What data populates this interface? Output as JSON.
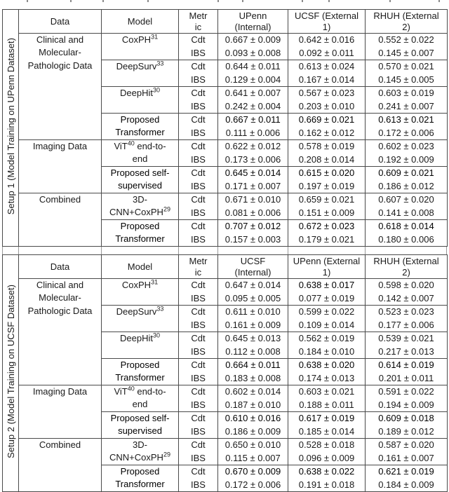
{
  "metric_labels": [
    "Cdt",
    "IBS"
  ],
  "tables": [
    {
      "setup_label": "Setup 1 (Model Training on UPenn Dataset)",
      "headers": [
        "Data",
        "Model",
        "Metric",
        "UPenn (Internal)",
        "UCSF (External 1)",
        "RHUH (External 2)"
      ],
      "groups": [
        {
          "data": "Clinical and Molecular-Pathologic Data",
          "models": [
            {
              "pre": "CoxPH",
              "sup": "31",
              "post": "",
              "bold": false,
              "cdt": [
                "0.667 ± 0.009",
                "0.642 ± 0.016",
                "0.552 ± 0.022"
              ],
              "cdt_bold": [
                false,
                false,
                false
              ],
              "ibs": [
                "0.093 ± 0.008",
                "0.092 ± 0.011",
                "0.145 ± 0.007"
              ]
            },
            {
              "pre": "DeepSurv",
              "sup": "33",
              "post": "",
              "bold": false,
              "cdt": [
                "0.644 ± 0.011",
                "0.613 ± 0.024",
                "0.570 ± 0.021"
              ],
              "cdt_bold": [
                false,
                false,
                false
              ],
              "ibs": [
                "0.129 ± 0.004",
                "0.167 ± 0.014",
                "0.145 ± 0.005"
              ]
            },
            {
              "pre": "DeepHit",
              "sup": "30",
              "post": "",
              "bold": false,
              "cdt": [
                "0.641 ± 0.007",
                "0.567 ± 0.023",
                "0.603 ± 0.019"
              ],
              "cdt_bold": [
                false,
                false,
                false
              ],
              "ibs": [
                "0.242 ± 0.004",
                "0.203 ± 0.010",
                "0.241 ± 0.007"
              ]
            },
            {
              "pre": "Proposed Transformer",
              "sup": "",
              "post": "",
              "bold": true,
              "cdt": [
                "0.667 ± 0.011",
                "0.669 ± 0.021",
                "0.613 ± 0.021"
              ],
              "cdt_bold": [
                true,
                true,
                true
              ],
              "ibs": [
                "0.111 ± 0.006",
                "0.162 ± 0.012",
                "0.172 ± 0.006"
              ]
            }
          ]
        },
        {
          "data": "Imaging Data",
          "models": [
            {
              "pre": "ViT",
              "sup": "40",
              "post": " end-to-end",
              "bold": false,
              "cdt": [
                "0.622 ± 0.012",
                "0.578 ± 0.019",
                "0.602 ± 0.023"
              ],
              "cdt_bold": [
                false,
                false,
                false
              ],
              "ibs": [
                "0.173 ± 0.006",
                "0.208 ± 0.014",
                "0.192 ± 0.009"
              ]
            },
            {
              "pre": "Proposed self-supervised",
              "sup": "",
              "post": "",
              "bold": true,
              "cdt": [
                "0.645 ± 0.014",
                "0.615 ± 0.020",
                "0.609 ± 0.021"
              ],
              "cdt_bold": [
                true,
                true,
                true
              ],
              "ibs": [
                "0.171 ± 0.007",
                "0.197 ± 0.019",
                "0.186 ± 0.012"
              ]
            }
          ]
        },
        {
          "data": "Combined",
          "models": [
            {
              "pre": "3D-CNN+CoxPH",
              "sup": "29",
              "post": "",
              "bold": false,
              "cdt": [
                "0.671 ± 0.010",
                "0.659 ± 0.021",
                "0.607 ± 0.020"
              ],
              "cdt_bold": [
                false,
                false,
                false
              ],
              "ibs": [
                "0.081 ± 0.006",
                "0.151 ± 0.009",
                "0.141 ± 0.008"
              ]
            },
            {
              "pre": "Proposed Transformer",
              "sup": "",
              "post": "",
              "bold": true,
              "cdt": [
                "0.707 ± 0.012",
                "0.672 ± 0.023",
                "0.618 ± 0.014"
              ],
              "cdt_bold": [
                true,
                true,
                true
              ],
              "ibs": [
                "0.157 ± 0.003",
                "0.179 ± 0.021",
                "0.180 ± 0.006"
              ]
            }
          ]
        }
      ]
    },
    {
      "setup_label": "Setup 2 (Model Training on UCSF Dataset)",
      "headers": [
        "Data",
        "Model",
        "Metric",
        "UCSF (Internal)",
        "UPenn (External 1)",
        "RHUH (External 2)"
      ],
      "groups": [
        {
          "data": "Clinical and Molecular-Pathologic Data",
          "models": [
            {
              "pre": "CoxPH",
              "sup": "31",
              "post": "",
              "bold": false,
              "cdt": [
                "0.647 ± 0.014",
                "0.638 ± 0.017",
                "0.598 ± 0.020"
              ],
              "cdt_bold": [
                false,
                true,
                false
              ],
              "ibs": [
                "0.095 ± 0.005",
                "0.077 ± 0.019",
                "0.142 ± 0.007"
              ]
            },
            {
              "pre": "DeepSurv",
              "sup": "33",
              "post": "",
              "bold": false,
              "cdt": [
                "0.611 ± 0.010",
                "0.599 ± 0.022",
                "0.523 ± 0.023"
              ],
              "cdt_bold": [
                false,
                false,
                false
              ],
              "ibs": [
                "0.161 ± 0.009",
                "0.109 ± 0.014",
                "0.177 ± 0.006"
              ]
            },
            {
              "pre": "DeepHit",
              "sup": "30",
              "post": "",
              "bold": false,
              "cdt": [
                "0.645 ± 0.013",
                "0.562 ± 0.019",
                "0.539 ± 0.021"
              ],
              "cdt_bold": [
                false,
                false,
                false
              ],
              "ibs": [
                "0.112 ± 0.008",
                "0.184 ± 0.010",
                "0.217 ± 0.013"
              ]
            },
            {
              "pre": "Proposed Transformer",
              "sup": "",
              "post": "",
              "bold": true,
              "cdt": [
                "0.664 ± 0.011",
                "0.638 ± 0.020",
                "0.614 ± 0.019"
              ],
              "cdt_bold": [
                true,
                true,
                true
              ],
              "ibs": [
                "0.183 ± 0.008",
                "0.174 ± 0.013",
                "0.201 ± 0.011"
              ]
            }
          ]
        },
        {
          "data": "Imaging Data",
          "models": [
            {
              "pre": "ViT",
              "sup": "40",
              "post": " end-to-end",
              "bold": false,
              "cdt": [
                "0.602 ± 0.014",
                "0.603 ± 0.021",
                "0.591 ± 0.022"
              ],
              "cdt_bold": [
                false,
                false,
                false
              ],
              "ibs": [
                "0.187 ± 0.010",
                "0.188 ± 0.011",
                "0.194 ± 0.009"
              ]
            },
            {
              "pre": "Proposed self-supervised",
              "sup": "",
              "post": "",
              "bold": true,
              "cdt": [
                "0.610 ± 0.016",
                "0.617 ± 0.019",
                "0.609 ± 0.018"
              ],
              "cdt_bold": [
                true,
                true,
                true
              ],
              "ibs": [
                "0.186 ± 0.009",
                "0.185 ± 0.014",
                "0.189 ± 0.012"
              ]
            }
          ]
        },
        {
          "data": "Combined",
          "models": [
            {
              "pre": "3D-CNN+CoxPH",
              "sup": "29",
              "post": "",
              "bold": false,
              "cdt": [
                "0.650 ± 0.010",
                "0.528 ± 0.018",
                "0.587 ± 0.020"
              ],
              "cdt_bold": [
                false,
                false,
                false
              ],
              "ibs": [
                "0.115 ± 0.007",
                "0.096 ± 0.009",
                "0.161 ± 0.007"
              ]
            },
            {
              "pre": "Proposed Transformer",
              "sup": "",
              "post": "",
              "bold": true,
              "cdt": [
                "0.670 ± 0.009",
                "0.638 ± 0.022",
                "0.621 ± 0.019"
              ],
              "cdt_bold": [
                true,
                true,
                true
              ],
              "ibs": [
                "0.172 ± 0.006",
                "0.191 ± 0.018",
                "0.184 ± 0.009"
              ]
            }
          ]
        }
      ]
    }
  ]
}
